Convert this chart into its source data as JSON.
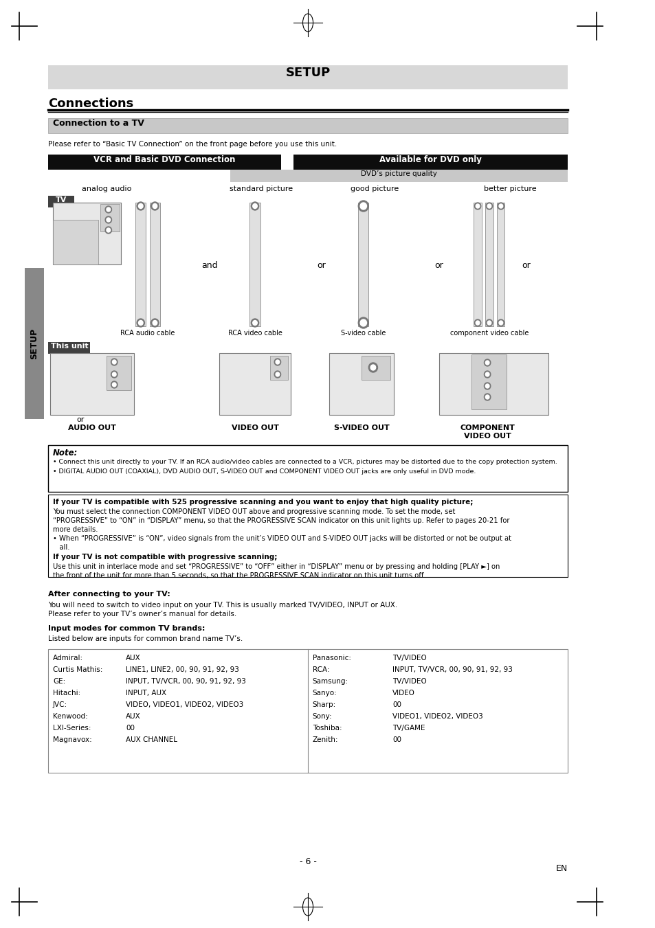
{
  "bg_color": "#ffffff",
  "setup_bar_color": "#d8d8d8",
  "setup_title": "SETUP",
  "connections_title": "Connections",
  "connection_tv_title": "Connection to a TV",
  "connection_tv_bar_color": "#c8c8c8",
  "vcr_title": "VCR and Basic DVD Connection",
  "dvd_title": "Available for DVD only",
  "dvd_quality_title": "DVD’s picture quality",
  "please_refer_text": "Please refer to “Basic TV Connection” on the front page before you use this unit.",
  "analog_audio_label": "analog audio",
  "standard_picture_label": "standard picture",
  "good_picture_label": "good picture",
  "better_picture_label": "better picture",
  "tv_label": "TV",
  "this_unit_label": "This unit",
  "and_label": "and",
  "or_label": "or",
  "rca_audio_label": "RCA audio cable",
  "rca_video_label": "RCA video cable",
  "svideo_cable_label": "S-video cable",
  "component_video_label": "component video cable",
  "audio_out_label": "AUDIO OUT",
  "video_out_label": "VIDEO OUT",
  "svideo_out_label": "S-VIDEO OUT",
  "component_out_label": "COMPONENT\nVIDEO OUT",
  "or_below_audio": "or",
  "setup_sidebar_text": "SETUP",
  "note_title": "Note:",
  "note_text1": "• Connect this unit directly to your TV. If an RCA audio/video cables are connected to a VCR, pictures may be distorted due to the copy protection system.",
  "note_text2": "• DIGITAL AUDIO OUT (COAXIAL), DVD AUDIO OUT, S-VIDEO OUT and COMPONENT VIDEO OUT jacks are only useful in DVD mode.",
  "progressive_title1": "If your TV is compatible with 525 progressive scanning and you want to enjoy that high quality picture;",
  "progressive_body1a": "You must select the connection COMPONENT VIDEO OUT above and progressive scanning mode. To set the mode, set",
  "progressive_body1b": "“PROGRESSIVE” to “ON” in “DISPLAY” menu, so that the PROGRESSIVE SCAN indicator on this unit lights up. Refer to pages 20-21 for",
  "progressive_body1c": "more details.",
  "progressive_body1d": "• When “PROGRESSIVE” is “ON”, video signals from the unit’s VIDEO OUT and S-VIDEO OUT jacks will be distorted or not be output at",
  "progressive_body1e": "   all.",
  "progressive_title2": "If your TV is not compatible with progressive scanning;",
  "progressive_body2a": "Use this unit in interlace mode and set “PROGRESSIVE” to “OFF” either in “DISPLAY” menu or by pressing and holding [PLAY ►] on",
  "progressive_body2b": "the front of the unit for more than 5 seconds, so that the PROGRESSIVE SCAN indicator on this unit turns off.",
  "after_title": "After connecting to your TV:",
  "after_body1": "You will need to switch to video input on your TV. This is usually marked TV/VIDEO, INPUT or AUX.",
  "after_body2": "Please refer to your TV’s owner’s manual for details.",
  "input_modes_title": "Input modes for common TV brands:",
  "input_modes_intro": "Listed below are inputs for common brand name TV’s.",
  "tv_brands_left": [
    [
      "Admiral:",
      "AUX"
    ],
    [
      "Curtis Mathis:",
      "LINE1, LINE2, 00, 90, 91, 92, 93"
    ],
    [
      "GE:",
      "INPUT, TV/VCR, 00, 90, 91, 92, 93"
    ],
    [
      "Hitachi:",
      "INPUT, AUX"
    ],
    [
      "JVC:",
      "VIDEO, VIDEO1, VIDEO2, VIDEO3"
    ],
    [
      "Kenwood:",
      "AUX"
    ],
    [
      "LXI-Series:",
      "00"
    ],
    [
      "Magnavox:",
      "AUX CHANNEL"
    ]
  ],
  "tv_brands_right": [
    [
      "Panasonic:",
      "TV/VIDEO"
    ],
    [
      "RCA:",
      "INPUT, TV/VCR, 00, 90, 91, 92, 93"
    ],
    [
      "Samsung:",
      "TV/VIDEO"
    ],
    [
      "Sanyo:",
      "VIDEO"
    ],
    [
      "Sharp:",
      "00"
    ],
    [
      "Sony:",
      "VIDEO1, VIDEO2, VIDEO3"
    ],
    [
      "Toshiba:",
      "TV/GAME"
    ],
    [
      "Zenith:",
      "00"
    ]
  ],
  "page_number": "- 6 -",
  "en_label": "EN"
}
